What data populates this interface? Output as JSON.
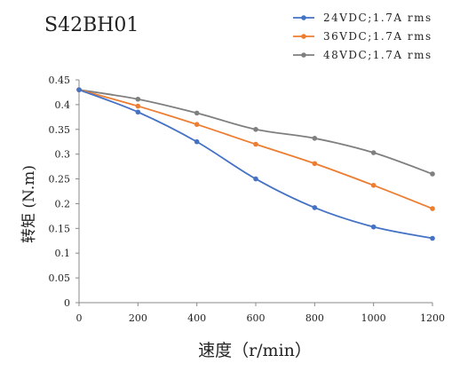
{
  "chart_data": {
    "type": "line",
    "title": "S42BH01",
    "xlabel": "速度（r/min）",
    "ylabel": "转矩 (N.m)",
    "x": [
      0,
      200,
      400,
      600,
      800,
      1000,
      1200
    ],
    "xlim": [
      0,
      1200
    ],
    "ylim": [
      0,
      0.45
    ],
    "x_ticks": [
      "0",
      "200",
      "400",
      "600",
      "800",
      "1000",
      "1200"
    ],
    "y_ticks": [
      "0",
      "0.05",
      "0.1",
      "0.15",
      "0.2",
      "0.25",
      "0.3",
      "0.35",
      "0.4",
      "0.45"
    ],
    "grid": "none",
    "legend_position": "top-right",
    "smooth": true,
    "series": [
      {
        "name": "24VDC;1.7A rms",
        "color": "#4472C4",
        "values": [
          0.43,
          0.385,
          0.325,
          0.25,
          0.192,
          0.153,
          0.13
        ]
      },
      {
        "name": "36VDC;1.7A rms",
        "color": "#ED7D31",
        "values": [
          0.43,
          0.397,
          0.36,
          0.32,
          0.281,
          0.237,
          0.19
        ]
      },
      {
        "name": "48VDC;1.7A rms",
        "color": "#7F7F7F",
        "values": [
          0.43,
          0.411,
          0.383,
          0.35,
          0.332,
          0.303,
          0.26
        ]
      }
    ]
  }
}
